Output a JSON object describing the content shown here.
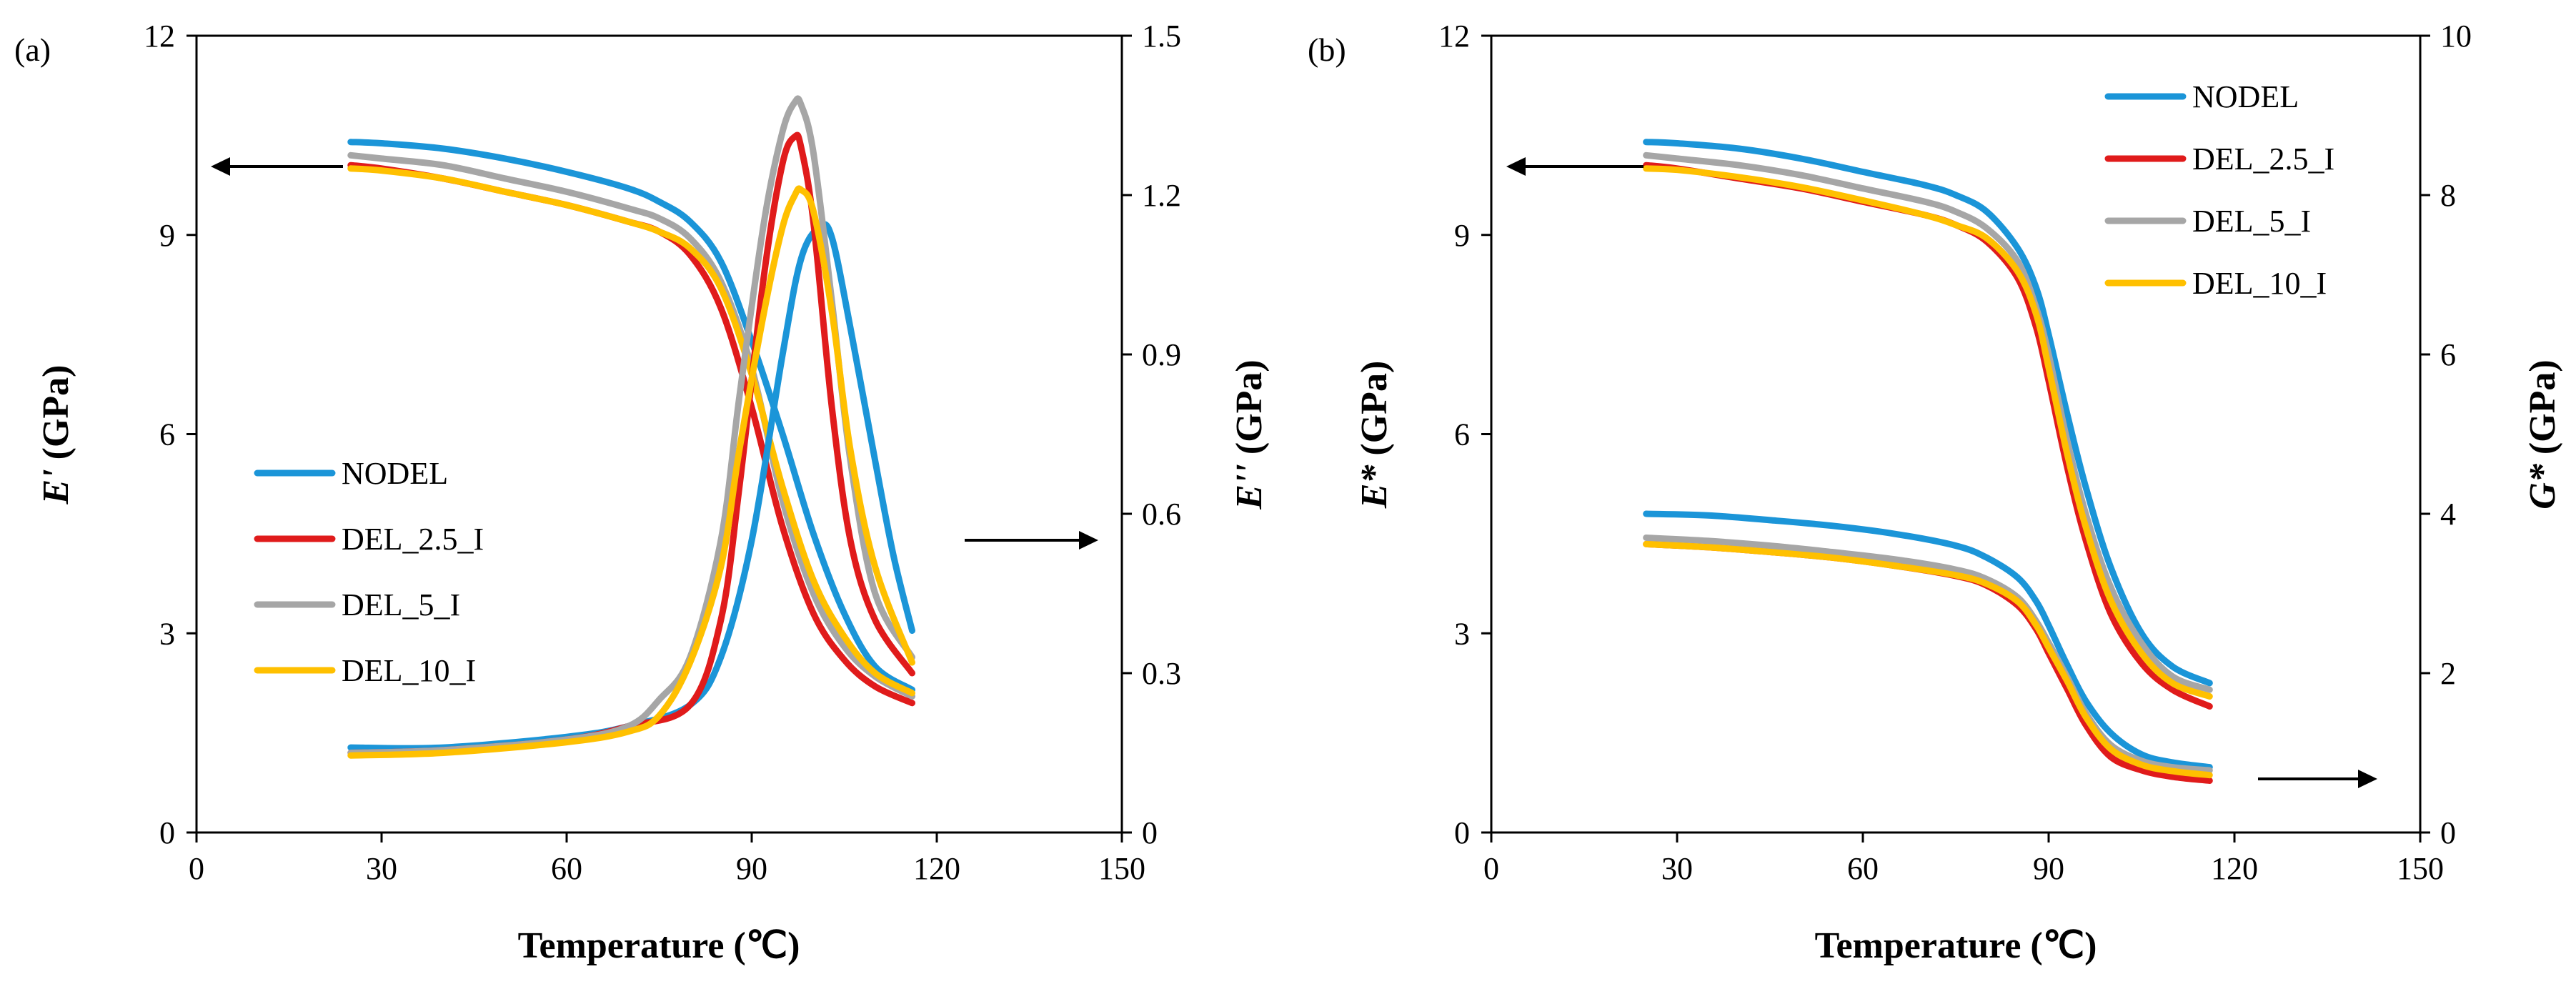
{
  "colors": {
    "NODEL": "#1b95d8",
    "DEL_2.5_I": "#e01b1b",
    "DEL_5_I": "#a6a6a6",
    "DEL_10_I": "#ffc000"
  },
  "chart_data": [
    {
      "type": "line",
      "panel_label": "(a)",
      "xlabel": "Temperature (℃)",
      "ylabel_left_italic": "E'",
      "ylabel_left_unit": " (GPa)",
      "ylabel_right_italic": "E''",
      "ylabel_right_unit": " (GPa)",
      "xlim": [
        0,
        150
      ],
      "ylim_left": [
        0,
        12
      ],
      "ylim_right": [
        0,
        1.5
      ],
      "xticks": [
        "0",
        "30",
        "60",
        "90",
        "120",
        "150"
      ],
      "yticks_left": [
        "0",
        "3",
        "6",
        "9",
        "12"
      ],
      "yticks_right": [
        "0",
        "0.3",
        "0.6",
        "0.9",
        "1.2",
        "1.5"
      ],
      "legend_position": "center-left",
      "annotations": [
        {
          "text": "arrow pointing to left axis",
          "direction": "left"
        },
        {
          "text": "arrow pointing to right axis",
          "direction": "right"
        }
      ],
      "series": [
        {
          "name": "NODEL",
          "axis": "left",
          "x": [
            25,
            30,
            40,
            50,
            60,
            70,
            75,
            80,
            85,
            90,
            95,
            100,
            105,
            110,
            116
          ],
          "y": [
            10.4,
            10.38,
            10.3,
            10.15,
            9.95,
            9.7,
            9.5,
            9.2,
            8.6,
            7.4,
            6.0,
            4.5,
            3.3,
            2.5,
            2.15
          ]
        },
        {
          "name": "DEL_2.5_I",
          "axis": "left",
          "x": [
            25,
            30,
            40,
            50,
            60,
            70,
            75,
            80,
            85,
            90,
            95,
            100,
            105,
            110,
            116
          ],
          "y": [
            10.05,
            10.0,
            9.85,
            9.65,
            9.45,
            9.2,
            9.05,
            8.7,
            7.9,
            6.4,
            4.6,
            3.3,
            2.6,
            2.2,
            1.95
          ]
        },
        {
          "name": "DEL_5_I",
          "axis": "left",
          "x": [
            25,
            30,
            40,
            50,
            60,
            70,
            75,
            80,
            85,
            90,
            95,
            100,
            105,
            110,
            116
          ],
          "y": [
            10.2,
            10.15,
            10.05,
            9.85,
            9.65,
            9.4,
            9.25,
            8.95,
            8.3,
            7.0,
            5.0,
            3.6,
            2.8,
            2.35,
            2.05
          ]
        },
        {
          "name": "DEL_10_I",
          "axis": "left",
          "x": [
            25,
            30,
            40,
            50,
            60,
            70,
            75,
            80,
            85,
            90,
            95,
            100,
            105,
            110,
            116
          ],
          "y": [
            10.0,
            9.97,
            9.85,
            9.65,
            9.45,
            9.2,
            9.05,
            8.8,
            8.2,
            6.9,
            5.2,
            3.8,
            2.95,
            2.4,
            2.1
          ]
        },
        {
          "name": "NODEL",
          "axis": "right",
          "x": [
            25,
            40,
            60,
            70,
            80,
            85,
            90,
            95,
            98,
            101,
            103,
            106,
            110,
            113,
            116
          ],
          "y": [
            0.16,
            0.16,
            0.18,
            0.2,
            0.24,
            0.33,
            0.55,
            0.9,
            1.08,
            1.14,
            1.12,
            0.95,
            0.7,
            0.52,
            0.38
          ]
        },
        {
          "name": "DEL_2.5_I",
          "axis": "right",
          "x": [
            25,
            40,
            60,
            70,
            80,
            85,
            88,
            92,
            95,
            97,
            98,
            100,
            103,
            106,
            110,
            116
          ],
          "y": [
            0.15,
            0.155,
            0.175,
            0.2,
            0.24,
            0.4,
            0.65,
            1.05,
            1.26,
            1.31,
            1.29,
            1.15,
            0.8,
            0.55,
            0.4,
            0.3
          ]
        },
        {
          "name": "DEL_5_I",
          "axis": "right",
          "x": [
            25,
            40,
            60,
            70,
            75,
            80,
            85,
            88,
            92,
            95,
            97,
            98,
            100,
            103,
            106,
            110,
            116
          ],
          "y": [
            0.15,
            0.155,
            0.175,
            0.2,
            0.25,
            0.33,
            0.55,
            0.82,
            1.15,
            1.32,
            1.375,
            1.37,
            1.28,
            1.0,
            0.7,
            0.45,
            0.33
          ]
        },
        {
          "name": "DEL_10_I",
          "axis": "right",
          "x": [
            25,
            40,
            60,
            70,
            75,
            80,
            85,
            88,
            92,
            95,
            97,
            98,
            100,
            103,
            106,
            110,
            116
          ],
          "y": [
            0.145,
            0.15,
            0.17,
            0.19,
            0.22,
            0.32,
            0.5,
            0.72,
            0.98,
            1.14,
            1.2,
            1.21,
            1.17,
            0.98,
            0.72,
            0.5,
            0.32
          ]
        }
      ],
      "legend": [
        "NODEL",
        "DEL_2.5_I",
        "DEL_5_I",
        "DEL_10_I"
      ]
    },
    {
      "type": "line",
      "panel_label": "(b)",
      "xlabel": "Temperature (℃)",
      "ylabel_left_italic": "E*",
      "ylabel_left_unit": " (GPa)",
      "ylabel_right_italic": "G*",
      "ylabel_right_unit": " (GPa)",
      "xlim": [
        0,
        150
      ],
      "ylim_left": [
        0,
        12
      ],
      "ylim_right": [
        0,
        10
      ],
      "xticks": [
        "0",
        "30",
        "60",
        "90",
        "120",
        "150"
      ],
      "yticks_left": [
        "0",
        "3",
        "6",
        "9",
        "12"
      ],
      "yticks_right": [
        "0",
        "2",
        "4",
        "6",
        "8",
        "10"
      ],
      "legend_position": "top-right",
      "annotations": [
        {
          "text": "arrow pointing to left axis",
          "direction": "left"
        },
        {
          "text": "arrow pointing to right axis",
          "direction": "right"
        }
      ],
      "series": [
        {
          "name": "NODEL",
          "axis": "left",
          "x": [
            25,
            30,
            40,
            50,
            60,
            70,
            75,
            80,
            85,
            88,
            90,
            93,
            96,
            100,
            105,
            110,
            116
          ],
          "y": [
            10.4,
            10.38,
            10.3,
            10.15,
            9.95,
            9.75,
            9.6,
            9.35,
            8.8,
            8.2,
            7.5,
            6.3,
            5.2,
            4.0,
            3.0,
            2.5,
            2.25
          ]
        },
        {
          "name": "DEL_2.5_I",
          "axis": "left",
          "x": [
            25,
            30,
            40,
            50,
            60,
            70,
            75,
            80,
            85,
            88,
            90,
            93,
            96,
            100,
            105,
            110,
            116
          ],
          "y": [
            10.05,
            10.0,
            9.85,
            9.7,
            9.5,
            9.3,
            9.15,
            8.9,
            8.35,
            7.6,
            6.8,
            5.5,
            4.4,
            3.3,
            2.55,
            2.15,
            1.9
          ]
        },
        {
          "name": "DEL_5_I",
          "axis": "left",
          "x": [
            25,
            30,
            40,
            50,
            60,
            70,
            75,
            80,
            85,
            88,
            90,
            93,
            96,
            100,
            105,
            110,
            116
          ],
          "y": [
            10.2,
            10.15,
            10.05,
            9.9,
            9.7,
            9.5,
            9.35,
            9.1,
            8.6,
            7.9,
            7.2,
            5.9,
            4.8,
            3.7,
            2.85,
            2.35,
            2.15
          ]
        },
        {
          "name": "DEL_10_I",
          "axis": "left",
          "x": [
            25,
            30,
            40,
            50,
            60,
            70,
            75,
            80,
            85,
            88,
            90,
            93,
            96,
            100,
            105,
            110,
            116
          ],
          "y": [
            10.0,
            9.98,
            9.87,
            9.72,
            9.52,
            9.3,
            9.15,
            8.95,
            8.45,
            7.8,
            7.0,
            5.7,
            4.6,
            3.5,
            2.7,
            2.25,
            2.05
          ]
        },
        {
          "name": "NODEL",
          "axis": "right",
          "x": [
            25,
            35,
            45,
            55,
            65,
            75,
            80,
            85,
            88,
            90,
            93,
            96,
            100,
            105,
            110,
            116
          ],
          "y": [
            4.0,
            3.98,
            3.92,
            3.85,
            3.75,
            3.6,
            3.45,
            3.2,
            2.9,
            2.6,
            2.1,
            1.65,
            1.25,
            0.98,
            0.88,
            0.82
          ]
        },
        {
          "name": "DEL_2.5_I",
          "axis": "right",
          "x": [
            25,
            35,
            45,
            55,
            65,
            75,
            80,
            85,
            88,
            90,
            93,
            96,
            100,
            105,
            110,
            116
          ],
          "y": [
            3.62,
            3.58,
            3.52,
            3.45,
            3.35,
            3.22,
            3.1,
            2.85,
            2.55,
            2.25,
            1.8,
            1.35,
            0.95,
            0.78,
            0.7,
            0.65
          ]
        },
        {
          "name": "DEL_5_I",
          "axis": "right",
          "x": [
            25,
            35,
            45,
            55,
            65,
            75,
            80,
            85,
            88,
            90,
            93,
            96,
            100,
            105,
            110,
            116
          ],
          "y": [
            3.7,
            3.66,
            3.6,
            3.52,
            3.43,
            3.3,
            3.18,
            2.95,
            2.65,
            2.38,
            1.95,
            1.5,
            1.1,
            0.9,
            0.82,
            0.78
          ]
        },
        {
          "name": "DEL_10_I",
          "axis": "right",
          "x": [
            25,
            35,
            45,
            55,
            65,
            75,
            80,
            85,
            88,
            90,
            93,
            96,
            100,
            105,
            110,
            116
          ],
          "y": [
            3.62,
            3.58,
            3.52,
            3.45,
            3.35,
            3.23,
            3.12,
            2.9,
            2.6,
            2.32,
            1.9,
            1.45,
            1.05,
            0.85,
            0.77,
            0.72
          ]
        }
      ],
      "legend": [
        "NODEL",
        "DEL_2.5_I",
        "DEL_5_I",
        "DEL_10_I"
      ]
    }
  ]
}
